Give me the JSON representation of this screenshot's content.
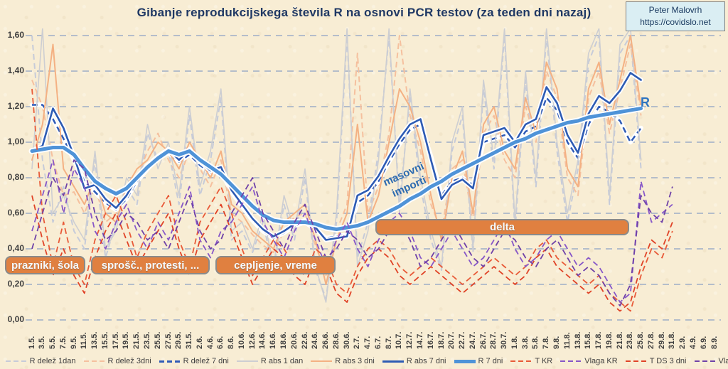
{
  "header": {
    "title": "Gibanje reprodukcijskega števila R na osnovi PCR testov (za teden dni nazaj)",
    "credit": {
      "name": "Peter Malovrh",
      "url": "https://covidslo.net"
    }
  },
  "annotations": {
    "period_boxes": [
      {
        "label": "prazniki, šola"
      },
      {
        "label": "sprošč., protesti, ..."
      },
      {
        "label": "cepljenje, vreme"
      },
      {
        "label": "delta"
      }
    ],
    "masovni_line1": "masovni",
    "masovni_line2": "importi",
    "r_end_label": "R"
  },
  "colors": {
    "background": "#f8edd4",
    "grid": "#b4bdca",
    "title_text": "#1f3864",
    "axis_text": "#3f3f3f",
    "annotation_box_fill": "#e08040",
    "annotation_box_border": "#8a8a8a",
    "annotation_text": "#f5f9fd",
    "credit_box_fill": "#daeef3",
    "credit_box_border": "#808080",
    "r_label": "#2e74c0",
    "masovni_text": "#2d6bb0"
  },
  "chart_data": {
    "type": "line",
    "title": "Gibanje reprodukcijskega števila R na osnovi PCR testov (za teden dni nazaj)",
    "xlabel": "",
    "ylabel": "",
    "ylim": [
      0,
      1.6
    ],
    "y_tick_labels": [
      "0,00",
      "0,20",
      "0,40",
      "0,60",
      "0,80",
      "1,00",
      "1,20",
      "1,40",
      "1,60"
    ],
    "grid": "horizontal-dashed",
    "legend_position": "bottom",
    "x_labels": [
      "1.5.",
      "3.5.",
      "5.5.",
      "7.5.",
      "9.5.",
      "11.5.",
      "13.5.",
      "15.5.",
      "17.5.",
      "19.5.",
      "21.5.",
      "23.5.",
      "25.5.",
      "27.5.",
      "29.5.",
      "31.5.",
      "2.6.",
      "4.6.",
      "6.6.",
      "8.6.",
      "10.6.",
      "12.6.",
      "14.6.",
      "16.6.",
      "18.6.",
      "20.6.",
      "22.6.",
      "24.6.",
      "26.6.",
      "28.6.",
      "30.6.",
      "2.7.",
      "4.7.",
      "6.7.",
      "8.7.",
      "10.7.",
      "12.7.",
      "14.7.",
      "16.7.",
      "18.7.",
      "20.7.",
      "22.7.",
      "24.7.",
      "26.7.",
      "28.7.",
      "30.7.",
      "1.8.",
      "3.8.",
      "5.8.",
      "7.8.",
      "9.8.",
      "11.8.",
      "13.8.",
      "15.8.",
      "17.8.",
      "19.8.",
      "21.8.",
      "23.8.",
      "25.8.",
      "27.8.",
      "29.8.",
      "31.8.",
      "2.9.",
      "4.9.",
      "6.9.",
      "8.9."
    ],
    "series": [
      {
        "name": "R delež 1dan",
        "color": "#c6cbd9",
        "style": "dashed",
        "width": 2,
        "values": [
          1.6,
          0.9,
          0.55,
          0.75,
          0.5,
          0.4,
          0.9,
          0.35,
          0.55,
          0.75,
          0.65,
          1.05,
          0.9,
          0.95,
          0.65,
          1.15,
          0.7,
          0.9,
          1.25,
          0.45,
          0.5,
          0.38,
          0.55,
          0.28,
          0.65,
          0.45,
          0.8,
          0.28,
          0.12,
          0.55,
          1.6,
          0.35,
          0.55,
          0.95,
          1.6,
          0.65,
          1.25,
          0.75,
          0.45,
          0.28,
          0.95,
          1.15,
          0.38,
          1.3,
          0.85,
          1.6,
          0.5,
          1.35,
          0.75,
          1.6,
          0.95,
          0.55,
          0.85,
          1.45,
          1.6,
          0.65,
          1.5,
          1.6,
          0.85
        ]
      },
      {
        "name": "R delež 3dni",
        "color": "#f5c09e",
        "style": "dashed",
        "width": 2,
        "values": [
          1.35,
          1.2,
          0.9,
          0.7,
          0.72,
          0.6,
          0.75,
          0.55,
          0.6,
          0.7,
          0.8,
          0.95,
          1.05,
          0.9,
          0.8,
          0.95,
          0.85,
          0.75,
          0.9,
          0.6,
          0.55,
          0.48,
          0.42,
          0.38,
          0.5,
          0.58,
          0.6,
          0.42,
          0.25,
          0.5,
          0.65,
          1.5,
          0.6,
          0.75,
          1.05,
          1.6,
          1.15,
          0.95,
          0.65,
          0.5,
          0.85,
          0.9,
          0.55,
          1.05,
          1.15,
          0.9,
          0.8,
          1.2,
          1.0,
          1.4,
          1.25,
          0.8,
          0.7,
          1.25,
          1.4,
          1.05,
          1.3,
          1.55,
          1.15
        ]
      },
      {
        "name": "R delež 7 dni",
        "color": "#2f5bb7",
        "style": "dashed",
        "width": 2.5,
        "glow": true,
        "values": [
          1.21,
          1.21,
          1.13,
          1.02,
          0.9,
          0.78,
          0.72,
          0.66,
          0.62,
          0.68,
          0.78,
          0.85,
          0.91,
          0.94,
          0.89,
          0.93,
          0.87,
          0.83,
          0.84,
          0.72,
          0.64,
          0.56,
          0.5,
          0.46,
          0.49,
          0.53,
          0.55,
          0.51,
          0.46,
          0.47,
          0.48,
          0.66,
          0.7,
          0.78,
          0.89,
          0.99,
          1.07,
          1.1,
          0.92,
          0.7,
          0.78,
          0.8,
          0.76,
          1.0,
          1.02,
          1.04,
          0.97,
          1.06,
          1.09,
          1.25,
          1.18,
          1.0,
          0.91,
          1.1,
          1.2,
          1.17,
          1.12,
          1.0,
          1.08
        ]
      },
      {
        "name": "R abs 1 dan",
        "color": "#cdced2",
        "style": "solid",
        "width": 1.6,
        "values": [
          0.85,
          1.64,
          0.6,
          0.7,
          0.55,
          0.45,
          0.95,
          0.4,
          0.5,
          0.8,
          0.7,
          1.1,
          0.85,
          1.0,
          0.7,
          1.2,
          0.75,
          0.95,
          1.3,
          0.5,
          0.55,
          0.4,
          0.6,
          0.3,
          0.7,
          0.5,
          0.85,
          0.3,
          0.1,
          0.6,
          1.64,
          0.3,
          0.5,
          0.9,
          1.64,
          0.6,
          1.3,
          0.8,
          0.5,
          0.3,
          1.0,
          1.2,
          0.4,
          1.35,
          0.9,
          1.64,
          0.55,
          1.4,
          0.8,
          1.64,
          1.0,
          0.6,
          0.9,
          1.5,
          1.64,
          0.7,
          1.55,
          1.64,
          0.9
        ]
      },
      {
        "name": "R abs 3 dni",
        "color": "#f4b183",
        "style": "solid",
        "width": 2,
        "values": [
          0.9,
          1.1,
          1.55,
          0.85,
          0.75,
          0.65,
          0.8,
          0.6,
          0.55,
          0.75,
          0.85,
          0.9,
          1.0,
          0.95,
          0.85,
          1.0,
          0.9,
          0.8,
          0.95,
          0.65,
          0.6,
          0.5,
          0.45,
          0.4,
          0.55,
          0.6,
          0.65,
          0.45,
          0.2,
          0.45,
          0.6,
          1.1,
          0.55,
          0.7,
          1.0,
          1.3,
          1.2,
          1.0,
          0.7,
          0.45,
          0.8,
          0.95,
          0.6,
          1.1,
          1.2,
          0.95,
          0.85,
          1.25,
          1.05,
          1.45,
          1.3,
          0.85,
          0.75,
          1.3,
          1.45,
          1.1,
          1.35,
          1.6,
          1.2
        ]
      },
      {
        "name": "R abs 7 dni",
        "color": "#2d5bb4",
        "style": "solid",
        "width": 2.6,
        "glow": true,
        "values": [
          0.95,
          0.98,
          1.19,
          1.08,
          0.92,
          0.74,
          0.76,
          0.68,
          0.63,
          0.7,
          0.8,
          0.87,
          0.92,
          0.96,
          0.9,
          0.96,
          0.89,
          0.84,
          0.86,
          0.73,
          0.65,
          0.57,
          0.51,
          0.47,
          0.5,
          0.54,
          0.56,
          0.52,
          0.45,
          0.46,
          0.47,
          0.7,
          0.73,
          0.81,
          0.92,
          1.02,
          1.1,
          1.13,
          0.9,
          0.68,
          0.76,
          0.79,
          0.74,
          1.04,
          1.06,
          1.08,
          1.0,
          1.1,
          1.13,
          1.31,
          1.22,
          1.04,
          0.94,
          1.16,
          1.26,
          1.22,
          1.29,
          1.39,
          1.35
        ]
      },
      {
        "name": "R 7 dni",
        "color": "#4f93d8",
        "style": "solid",
        "width": 5,
        "glow": true,
        "values": [
          0.95,
          0.96,
          0.97,
          0.97,
          0.93,
          0.85,
          0.78,
          0.74,
          0.71,
          0.74,
          0.8,
          0.86,
          0.91,
          0.95,
          0.93,
          0.95,
          0.9,
          0.86,
          0.82,
          0.76,
          0.7,
          0.64,
          0.59,
          0.56,
          0.55,
          0.55,
          0.55,
          0.54,
          0.52,
          0.51,
          0.52,
          0.53,
          0.55,
          0.58,
          0.61,
          0.64,
          0.68,
          0.71,
          0.75,
          0.78,
          0.82,
          0.85,
          0.88,
          0.91,
          0.94,
          0.97,
          1.0,
          1.02,
          1.05,
          1.07,
          1.09,
          1.11,
          1.12,
          1.14,
          1.15,
          1.16,
          1.17,
          1.18,
          1.19
        ]
      },
      {
        "name": "T KR",
        "color": "#e85a38",
        "style": "dashed",
        "width": 1.8,
        "values": [
          1.3,
          0.6,
          0.3,
          0.55,
          0.3,
          0.2,
          0.45,
          0.6,
          0.7,
          0.55,
          0.35,
          0.5,
          0.6,
          0.7,
          0.45,
          0.3,
          0.55,
          0.65,
          0.75,
          0.6,
          0.4,
          0.25,
          0.35,
          0.45,
          0.4,
          0.3,
          0.25,
          0.4,
          0.35,
          0.2,
          0.15,
          0.3,
          0.4,
          0.45,
          0.4,
          0.3,
          0.25,
          0.3,
          0.35,
          0.3,
          0.25,
          0.2,
          0.25,
          0.3,
          0.35,
          0.3,
          0.25,
          0.3,
          0.4,
          0.45,
          0.35,
          0.3,
          0.25,
          0.2,
          0.25,
          0.15,
          0.1,
          0.05,
          0.25,
          0.4,
          0.35,
          0.5
        ]
      },
      {
        "name": "Vlaga KR",
        "color": "#8757c8",
        "style": "dashed",
        "width": 1.8,
        "values": [
          0.5,
          0.7,
          0.9,
          0.6,
          0.85,
          0.75,
          0.5,
          0.4,
          0.55,
          0.65,
          0.5,
          0.4,
          0.55,
          0.45,
          0.6,
          0.75,
          0.45,
          0.35,
          0.5,
          0.55,
          0.65,
          0.75,
          0.55,
          0.45,
          0.35,
          0.5,
          0.6,
          0.45,
          0.3,
          0.45,
          0.55,
          0.4,
          0.3,
          0.45,
          0.55,
          0.6,
          0.5,
          0.35,
          0.3,
          0.4,
          0.5,
          0.4,
          0.3,
          0.35,
          0.45,
          0.55,
          0.4,
          0.3,
          0.35,
          0.45,
          0.5,
          0.4,
          0.3,
          0.35,
          0.3,
          0.2,
          0.1,
          0.15,
          0.78,
          0.55,
          0.6,
          0.65
        ]
      },
      {
        "name": "T DS 3 dni",
        "color": "#e04327",
        "style": "dashed",
        "width": 1.8,
        "values": [
          0.7,
          0.45,
          0.25,
          0.4,
          0.25,
          0.15,
          0.35,
          0.5,
          0.6,
          0.45,
          0.3,
          0.4,
          0.5,
          0.6,
          0.4,
          0.25,
          0.45,
          0.55,
          0.65,
          0.5,
          0.35,
          0.2,
          0.3,
          0.4,
          0.35,
          0.25,
          0.2,
          0.35,
          0.3,
          0.15,
          0.1,
          0.25,
          0.35,
          0.4,
          0.35,
          0.25,
          0.2,
          0.25,
          0.3,
          0.25,
          0.2,
          0.15,
          0.2,
          0.25,
          0.3,
          0.25,
          0.2,
          0.25,
          0.35,
          0.4,
          0.3,
          0.25,
          0.2,
          0.15,
          0.2,
          0.1,
          0.05,
          0.1,
          0.3,
          0.45,
          0.4,
          0.55
        ]
      },
      {
        "name": "Vlaga Deskle",
        "color": "#6f42a8",
        "style": "dashed",
        "width": 1.8,
        "values": [
          0.4,
          0.6,
          0.8,
          0.7,
          0.9,
          0.85,
          0.6,
          0.45,
          0.5,
          0.6,
          0.55,
          0.45,
          0.5,
          0.4,
          0.55,
          0.7,
          0.5,
          0.4,
          0.45,
          0.6,
          0.7,
          0.8,
          0.6,
          0.5,
          0.4,
          0.55,
          0.65,
          0.5,
          0.35,
          0.4,
          0.5,
          0.45,
          0.35,
          0.4,
          0.5,
          0.55,
          0.45,
          0.3,
          0.35,
          0.45,
          0.55,
          0.45,
          0.35,
          0.3,
          0.4,
          0.5,
          0.45,
          0.35,
          0.3,
          0.4,
          0.45,
          0.35,
          0.25,
          0.3,
          0.25,
          0.15,
          0.08,
          0.2,
          0.7,
          0.6,
          0.55,
          0.75
        ]
      }
    ]
  }
}
